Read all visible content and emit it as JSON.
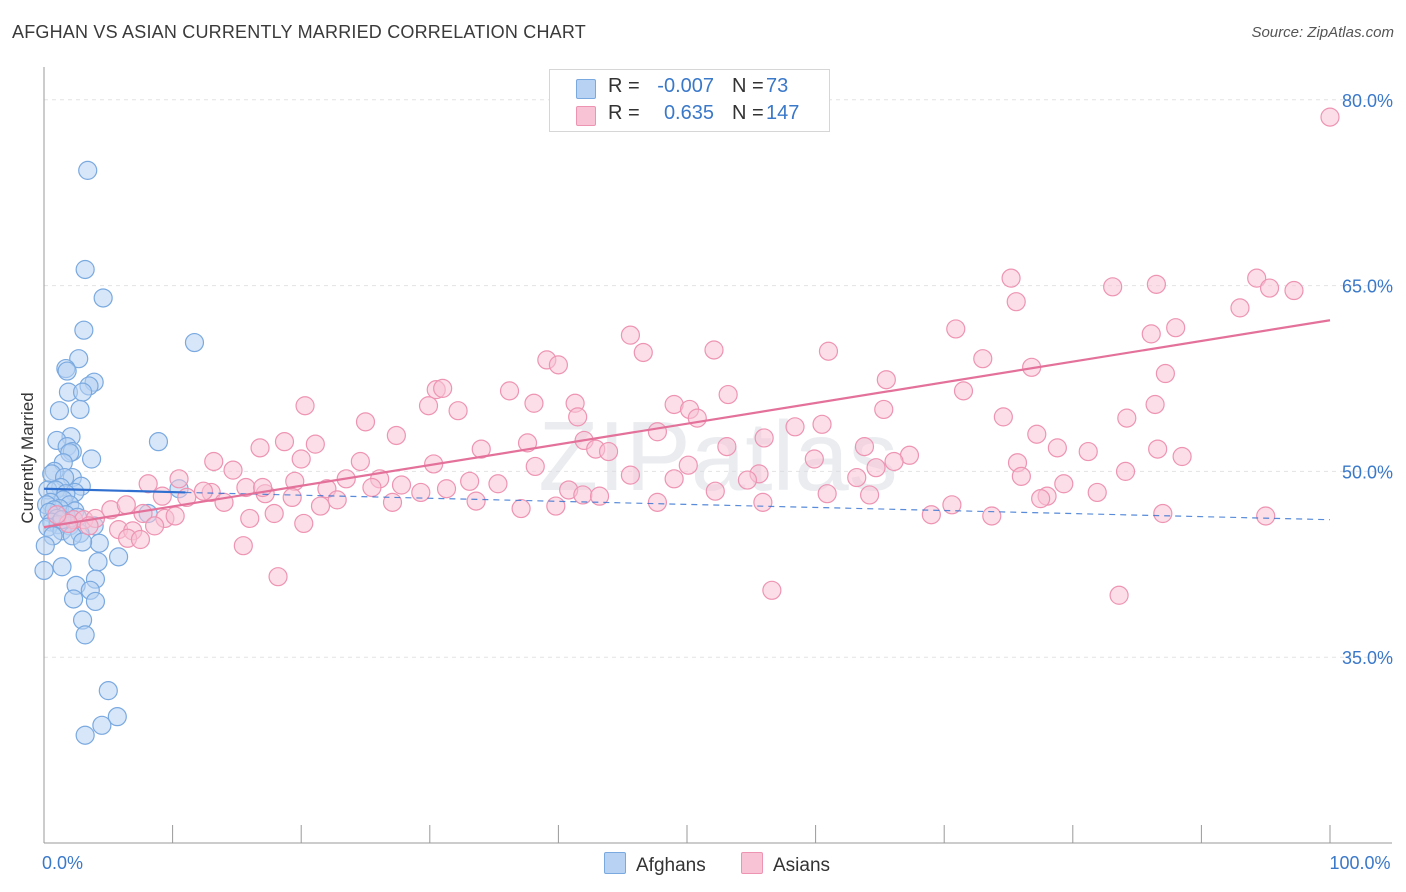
{
  "title": "AFGHAN VS ASIAN CURRENTLY MARRIED CORRELATION CHART",
  "source": "Source: ZipAtlas.com",
  "watermark": "ZIPatlas",
  "legend": {
    "rows": [
      {
        "name": "afghans",
        "r_label": "R =",
        "r_value": "-0.007",
        "n_label": "N =",
        "n_value": "73",
        "fill": "#b7d2f3",
        "stroke": "#7aa9e0"
      },
      {
        "name": "asians",
        "r_label": "R =",
        "r_value": "0.635",
        "n_label": "N =",
        "n_value": "147",
        "fill": "#f8c3d5",
        "stroke": "#ee94b3"
      }
    ]
  },
  "bottom_legend": [
    {
      "label": "Afghans",
      "fill": "#b7d2f3",
      "stroke": "#7aa9e0"
    },
    {
      "label": "Asians",
      "fill": "#f8c3d5",
      "stroke": "#ee94b3"
    }
  ],
  "chart_data": {
    "type": "scatter",
    "title": "AFGHAN VS ASIAN CURRENTLY MARRIED CORRELATION CHART",
    "xlabel": "",
    "ylabel": "Currently Married",
    "xlim": [
      0,
      100
    ],
    "ylim": [
      20,
      82
    ],
    "x_tick_labels": [
      {
        "value": 0,
        "label": "0.0%"
      },
      {
        "value": 100,
        "label": "100.0%"
      }
    ],
    "y_tick_labels": [
      {
        "value": 35,
        "label": "35.0%"
      },
      {
        "value": 50,
        "label": "50.0%"
      },
      {
        "value": 65,
        "label": "65.0%"
      },
      {
        "value": 80,
        "label": "80.0%"
      }
    ],
    "series": [
      {
        "name": "Afghans",
        "color": "#7aa9e0",
        "fill": "#b7d2f3",
        "trend": {
          "solid": [
            [
              0,
              48.6
            ],
            [
              11,
              48.3
            ]
          ],
          "dashed": [
            [
              11,
              48.3
            ],
            [
              100,
              46.1
            ]
          ]
        },
        "points": [
          [
            3.4,
            74.3
          ],
          [
            3.2,
            66.3
          ],
          [
            4.6,
            64.0
          ],
          [
            11.7,
            60.4
          ],
          [
            3.1,
            61.4
          ],
          [
            2.7,
            59.1
          ],
          [
            1.7,
            58.3
          ],
          [
            1.8,
            58.1
          ],
          [
            3.9,
            57.2
          ],
          [
            3.5,
            56.9
          ],
          [
            1.9,
            56.4
          ],
          [
            3.0,
            56.4
          ],
          [
            1.2,
            54.9
          ],
          [
            2.8,
            55.0
          ],
          [
            2.1,
            52.8
          ],
          [
            1.0,
            52.5
          ],
          [
            8.9,
            52.4
          ],
          [
            1.8,
            52.0
          ],
          [
            2.2,
            51.6
          ],
          [
            2.0,
            51.5
          ],
          [
            3.7,
            51.0
          ],
          [
            1.5,
            50.7
          ],
          [
            0.8,
            50.0
          ],
          [
            0.6,
            49.8
          ],
          [
            2.2,
            49.5
          ],
          [
            1.6,
            49.5
          ],
          [
            2.9,
            48.8
          ],
          [
            1.3,
            48.7
          ],
          [
            0.3,
            48.5
          ],
          [
            0.9,
            48.5
          ],
          [
            2.4,
            48.3
          ],
          [
            1.7,
            48.2
          ],
          [
            10.5,
            48.6
          ],
          [
            1.5,
            47.7
          ],
          [
            0.5,
            47.5
          ],
          [
            2.0,
            47.3
          ],
          [
            0.2,
            47.3
          ],
          [
            1.2,
            47.0
          ],
          [
            0.8,
            46.9
          ],
          [
            2.4,
            46.8
          ],
          [
            0.4,
            46.7
          ],
          [
            1.7,
            46.5
          ],
          [
            2.6,
            46.3
          ],
          [
            1.0,
            46.2
          ],
          [
            8.1,
            46.6
          ],
          [
            0.6,
            45.9
          ],
          [
            1.1,
            45.7
          ],
          [
            2.0,
            45.6
          ],
          [
            0.3,
            45.5
          ],
          [
            3.9,
            45.6
          ],
          [
            1.4,
            45.2
          ],
          [
            2.8,
            45.0
          ],
          [
            0.7,
            44.8
          ],
          [
            2.2,
            44.8
          ],
          [
            4.3,
            44.2
          ],
          [
            0.1,
            44.0
          ],
          [
            3.0,
            44.3
          ],
          [
            5.8,
            43.1
          ],
          [
            4.2,
            42.7
          ],
          [
            1.4,
            42.3
          ],
          [
            0.0,
            42.0
          ],
          [
            4.0,
            41.3
          ],
          [
            2.5,
            40.8
          ],
          [
            3.6,
            40.4
          ],
          [
            2.3,
            39.7
          ],
          [
            4.0,
            39.5
          ],
          [
            3.0,
            38.0
          ],
          [
            3.2,
            36.8
          ],
          [
            5.0,
            32.3
          ],
          [
            5.7,
            30.2
          ],
          [
            4.5,
            29.5
          ],
          [
            3.2,
            28.7
          ],
          [
            1.4,
            46.1
          ]
        ],
        "sizes": {
          "0,42.0": "large"
        }
      },
      {
        "name": "Asians",
        "color": "#ee94b3",
        "fill": "#f8c3d5",
        "trend": {
          "solid": [
            [
              0,
              45.5
            ],
            [
              100,
              62.2
            ]
          ]
        },
        "points": [
          [
            100.0,
            78.6
          ],
          [
            94.3,
            65.6
          ],
          [
            86.5,
            65.1
          ],
          [
            97.2,
            64.6
          ],
          [
            75.2,
            65.6
          ],
          [
            95.3,
            64.8
          ],
          [
            83.1,
            64.9
          ],
          [
            75.6,
            63.7
          ],
          [
            93.0,
            63.2
          ],
          [
            70.9,
            61.5
          ],
          [
            88.0,
            61.6
          ],
          [
            86.1,
            61.1
          ],
          [
            45.6,
            61.0
          ],
          [
            52.1,
            59.8
          ],
          [
            46.6,
            59.6
          ],
          [
            61.0,
            59.7
          ],
          [
            73.0,
            59.1
          ],
          [
            76.8,
            58.4
          ],
          [
            39.1,
            59.0
          ],
          [
            40.0,
            58.6
          ],
          [
            87.2,
            57.9
          ],
          [
            65.5,
            57.4
          ],
          [
            30.5,
            56.6
          ],
          [
            36.2,
            56.5
          ],
          [
            71.5,
            56.5
          ],
          [
            38.1,
            55.5
          ],
          [
            53.2,
            56.2
          ],
          [
            49.0,
            55.4
          ],
          [
            50.2,
            55.0
          ],
          [
            41.3,
            55.5
          ],
          [
            86.4,
            55.4
          ],
          [
            65.3,
            55.0
          ],
          [
            31.0,
            56.7
          ],
          [
            32.2,
            54.9
          ],
          [
            50.8,
            54.3
          ],
          [
            41.5,
            54.4
          ],
          [
            74.6,
            54.4
          ],
          [
            84.2,
            54.3
          ],
          [
            20.3,
            55.3
          ],
          [
            25.0,
            54.0
          ],
          [
            58.4,
            53.6
          ],
          [
            47.7,
            53.2
          ],
          [
            29.9,
            55.3
          ],
          [
            21.1,
            52.2
          ],
          [
            60.5,
            53.8
          ],
          [
            77.2,
            53.0
          ],
          [
            42.0,
            52.5
          ],
          [
            56.0,
            52.7
          ],
          [
            37.6,
            52.3
          ],
          [
            53.1,
            52.0
          ],
          [
            63.8,
            52.0
          ],
          [
            67.3,
            51.3
          ],
          [
            78.8,
            51.9
          ],
          [
            81.2,
            51.6
          ],
          [
            18.7,
            52.4
          ],
          [
            16.8,
            51.9
          ],
          [
            27.4,
            52.9
          ],
          [
            34.0,
            51.8
          ],
          [
            42.9,
            51.8
          ],
          [
            59.9,
            51.0
          ],
          [
            75.7,
            50.7
          ],
          [
            86.6,
            51.8
          ],
          [
            43.9,
            51.6
          ],
          [
            50.1,
            50.5
          ],
          [
            66.1,
            50.8
          ],
          [
            88.5,
            51.2
          ],
          [
            13.2,
            50.8
          ],
          [
            14.7,
            50.1
          ],
          [
            20.0,
            51.0
          ],
          [
            24.6,
            50.8
          ],
          [
            30.3,
            50.6
          ],
          [
            38.2,
            50.4
          ],
          [
            55.6,
            49.8
          ],
          [
            64.7,
            50.3
          ],
          [
            76.0,
            49.6
          ],
          [
            79.3,
            49.0
          ],
          [
            10.5,
            49.4
          ],
          [
            13.0,
            48.3
          ],
          [
            15.7,
            48.7
          ],
          [
            17.2,
            48.2
          ],
          [
            19.5,
            49.2
          ],
          [
            22.0,
            48.6
          ],
          [
            23.5,
            49.4
          ],
          [
            26.1,
            49.4
          ],
          [
            27.8,
            48.9
          ],
          [
            31.3,
            48.6
          ],
          [
            33.1,
            49.2
          ],
          [
            35.3,
            49.0
          ],
          [
            40.8,
            48.5
          ],
          [
            41.9,
            48.1
          ],
          [
            45.6,
            49.7
          ],
          [
            49.0,
            49.4
          ],
          [
            52.2,
            48.4
          ],
          [
            54.7,
            49.3
          ],
          [
            63.2,
            49.5
          ],
          [
            64.2,
            48.1
          ],
          [
            78.0,
            48.0
          ],
          [
            81.9,
            48.3
          ],
          [
            84.1,
            50.0
          ],
          [
            8.1,
            49.0
          ],
          [
            9.2,
            48.0
          ],
          [
            11.1,
            47.9
          ],
          [
            12.4,
            48.4
          ],
          [
            14.0,
            47.5
          ],
          [
            17.0,
            48.7
          ],
          [
            19.3,
            47.9
          ],
          [
            21.5,
            47.2
          ],
          [
            22.8,
            47.7
          ],
          [
            25.5,
            48.7
          ],
          [
            27.1,
            47.5
          ],
          [
            29.3,
            48.3
          ],
          [
            33.6,
            47.6
          ],
          [
            37.1,
            47.0
          ],
          [
            39.8,
            47.2
          ],
          [
            43.2,
            48.0
          ],
          [
            47.7,
            47.5
          ],
          [
            55.9,
            47.5
          ],
          [
            60.9,
            48.2
          ],
          [
            70.6,
            47.3
          ],
          [
            77.5,
            47.8
          ],
          [
            5.2,
            46.9
          ],
          [
            6.4,
            47.3
          ],
          [
            7.7,
            46.6
          ],
          [
            9.4,
            46.2
          ],
          [
            10.2,
            46.4
          ],
          [
            16.0,
            46.2
          ],
          [
            17.9,
            46.6
          ],
          [
            20.2,
            45.8
          ],
          [
            2.3,
            46.1
          ],
          [
            3.1,
            46.1
          ],
          [
            4.0,
            46.2
          ],
          [
            5.8,
            45.3
          ],
          [
            6.9,
            45.2
          ],
          [
            8.6,
            45.6
          ],
          [
            3.5,
            45.6
          ],
          [
            1.9,
            45.8
          ],
          [
            6.5,
            44.6
          ],
          [
            7.5,
            44.5
          ],
          [
            15.5,
            44.0
          ],
          [
            18.2,
            41.5
          ],
          [
            56.6,
            40.4
          ],
          [
            83.6,
            40.0
          ],
          [
            69.0,
            46.5
          ],
          [
            73.7,
            46.4
          ],
          [
            87.0,
            46.6
          ],
          [
            95.0,
            46.4
          ],
          [
            1.0,
            46.5
          ]
        ]
      }
    ]
  }
}
